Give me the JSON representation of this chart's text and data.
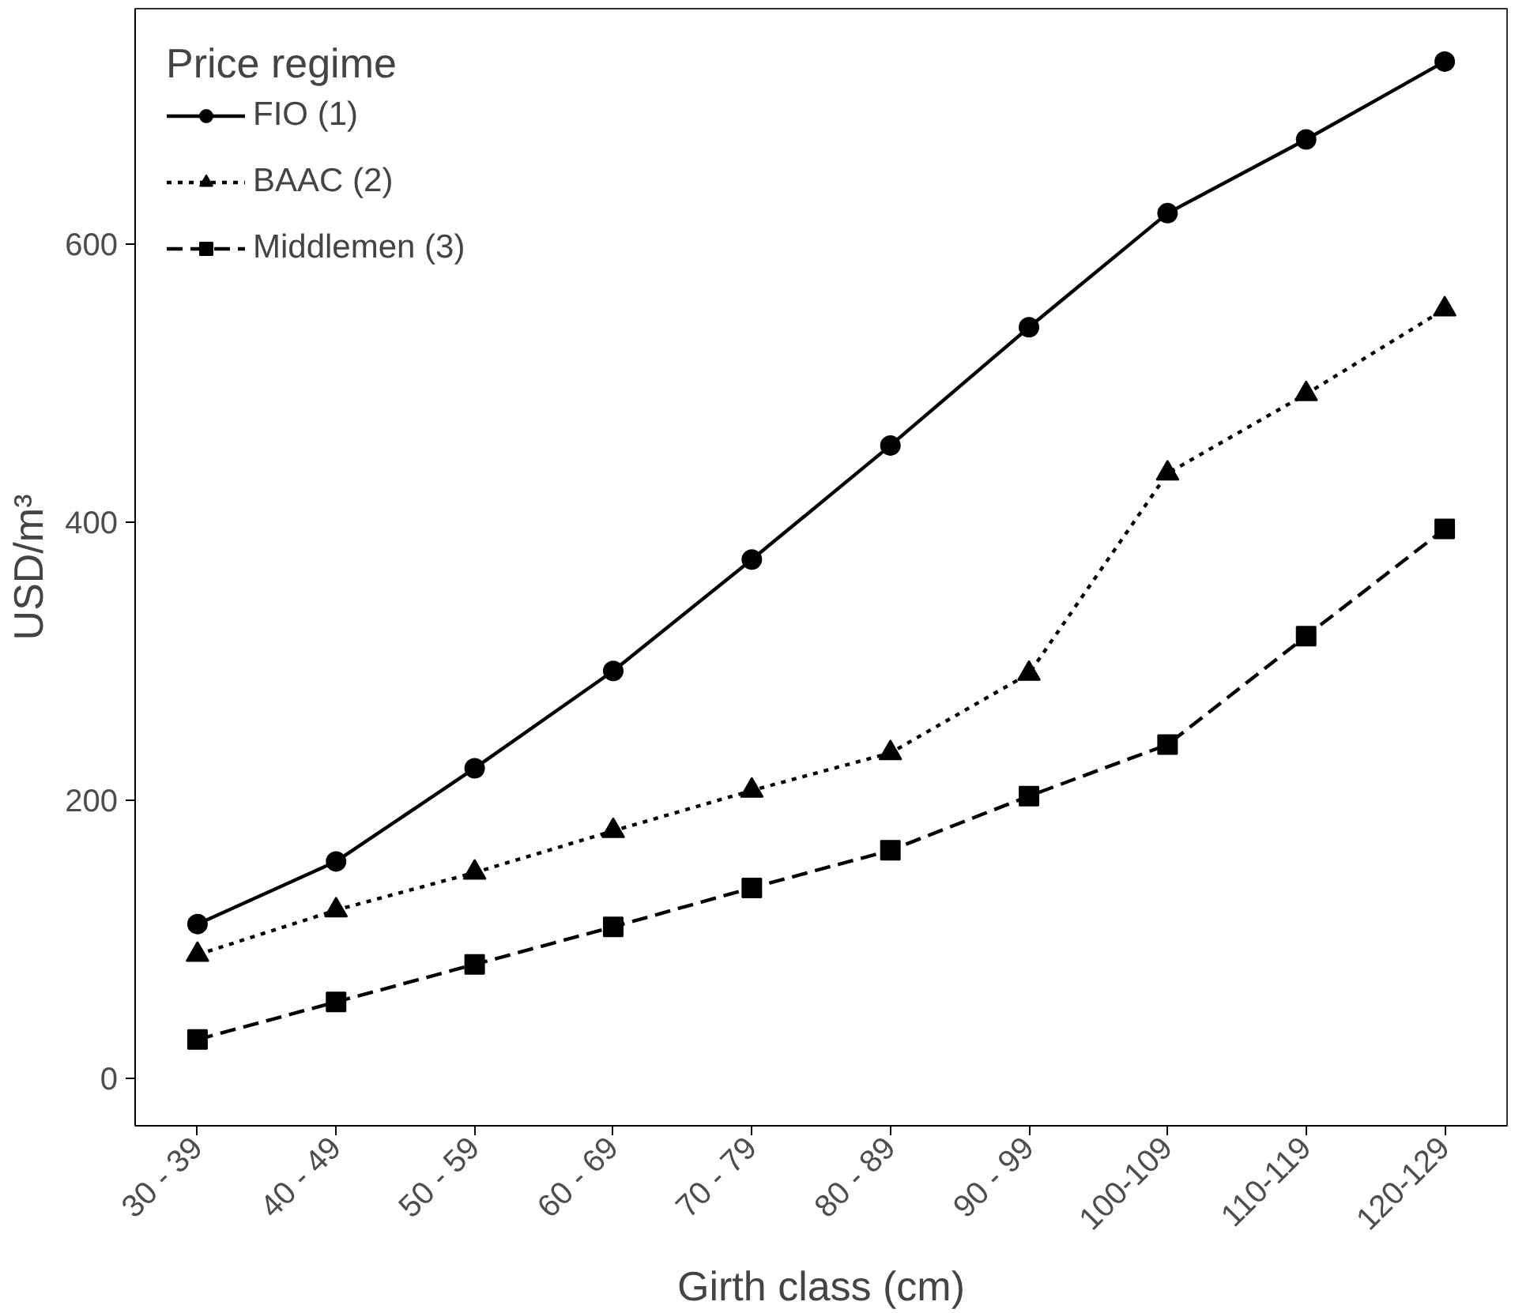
{
  "chart_data": {
    "type": "line",
    "xlabel": "Girth class (cm)",
    "ylabel": "USD/m³",
    "legend_title": "Price regime",
    "legend": "top left",
    "grid": false,
    "categories": [
      "30 - 39",
      "40 - 49",
      "50 - 59",
      "60 - 69",
      "70 - 79",
      "80 - 89",
      "90 - 99",
      "100-109",
      "110-119",
      "120-129"
    ],
    "ylim": [
      -34,
      769
    ],
    "yticks": [
      0,
      200,
      400,
      600
    ],
    "series": [
      {
        "name": "FIO (1)",
        "color": "#000000",
        "marker": "circle",
        "line_style": "solid",
        "values": [
          111,
          156,
          223,
          293,
          373,
          455,
          540,
          622,
          675,
          731
        ]
      },
      {
        "name": "BAAC (2)",
        "color": "#000000",
        "marker": "triangle",
        "line_style": "dotted",
        "values": [
          89,
          121,
          148,
          178,
          207,
          234,
          291,
          435,
          492,
          553
        ]
      },
      {
        "name": "Middlemen (3)",
        "color": "#000000",
        "marker": "square",
        "line_style": "dashed",
        "values": [
          28,
          55,
          82,
          109,
          137,
          164,
          203,
          240,
          318,
          395
        ]
      }
    ]
  }
}
